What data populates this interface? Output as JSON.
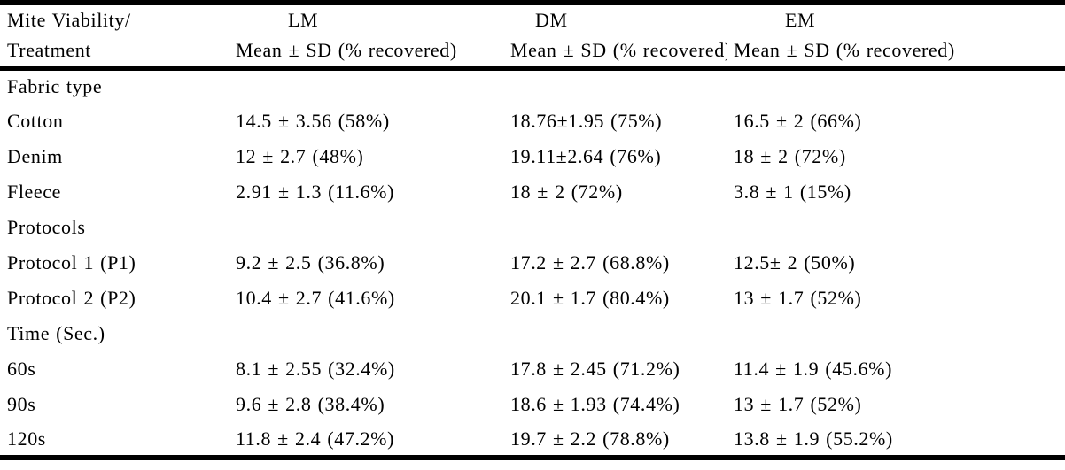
{
  "table": {
    "colors": {
      "background": "#ffffff",
      "text": "#000000",
      "rule": "#000000"
    },
    "header": {
      "row_label_line1": "Mite Viability/",
      "row_label_line2": "Treatment",
      "columns": [
        {
          "acronym": "LM",
          "subtitle": "Mean ± SD (% recovered)"
        },
        {
          "acronym": "DM",
          "subtitle": "Mean ± SD (% recovered)"
        },
        {
          "acronym": "EM",
          "subtitle": "Mean ± SD (% recovered)"
        }
      ]
    },
    "sections": [
      {
        "label": "Fabric type",
        "rows": [
          {
            "label": "Cotton",
            "lm": "14.5 ± 3.56 (58%)",
            "dm": "18.76±1.95 (75%)",
            "em": "16.5 ± 2 (66%)"
          },
          {
            "label": "Denim",
            "lm": "12 ± 2.7 (48%)",
            "dm": "19.11±2.64 (76%)",
            "em": "18 ± 2 (72%)"
          },
          {
            "label": "Fleece",
            "lm": "2.91 ± 1.3 (11.6%)",
            "dm": "18 ± 2 (72%)",
            "em": "3.8 ± 1 (15%)"
          }
        ]
      },
      {
        "label": "Protocols",
        "rows": [
          {
            "label": "Protocol 1 (P1)",
            "lm": "9.2 ± 2.5 (36.8%)",
            "dm": "17.2 ± 2.7 (68.8%)",
            "em": "12.5± 2 (50%)"
          },
          {
            "label": "Protocol 2 (P2)",
            "lm": "10.4 ± 2.7 (41.6%)",
            "dm": "20.1 ± 1.7 (80.4%)",
            "em": "13 ± 1.7 (52%)"
          }
        ]
      },
      {
        "label": "Time (Sec.)",
        "rows": [
          {
            "label": "60s",
            "lm": "8.1 ± 2.55 (32.4%)",
            "dm": "17.8 ± 2.45 (71.2%)",
            "em": "11.4 ± 1.9 (45.6%)"
          },
          {
            "label": "90s",
            "lm": "9.6 ± 2.8 (38.4%)",
            "dm": "18.6 ± 1.93 (74.4%)",
            "em": "13 ± 1.7 (52%)"
          },
          {
            "label": "120s",
            "lm": "11.8 ± 2.4 (47.2%)",
            "dm": "19.7 ± 2.2 (78.8%)",
            "em": "13.8 ± 1.9 (55.2%)"
          }
        ]
      }
    ]
  }
}
